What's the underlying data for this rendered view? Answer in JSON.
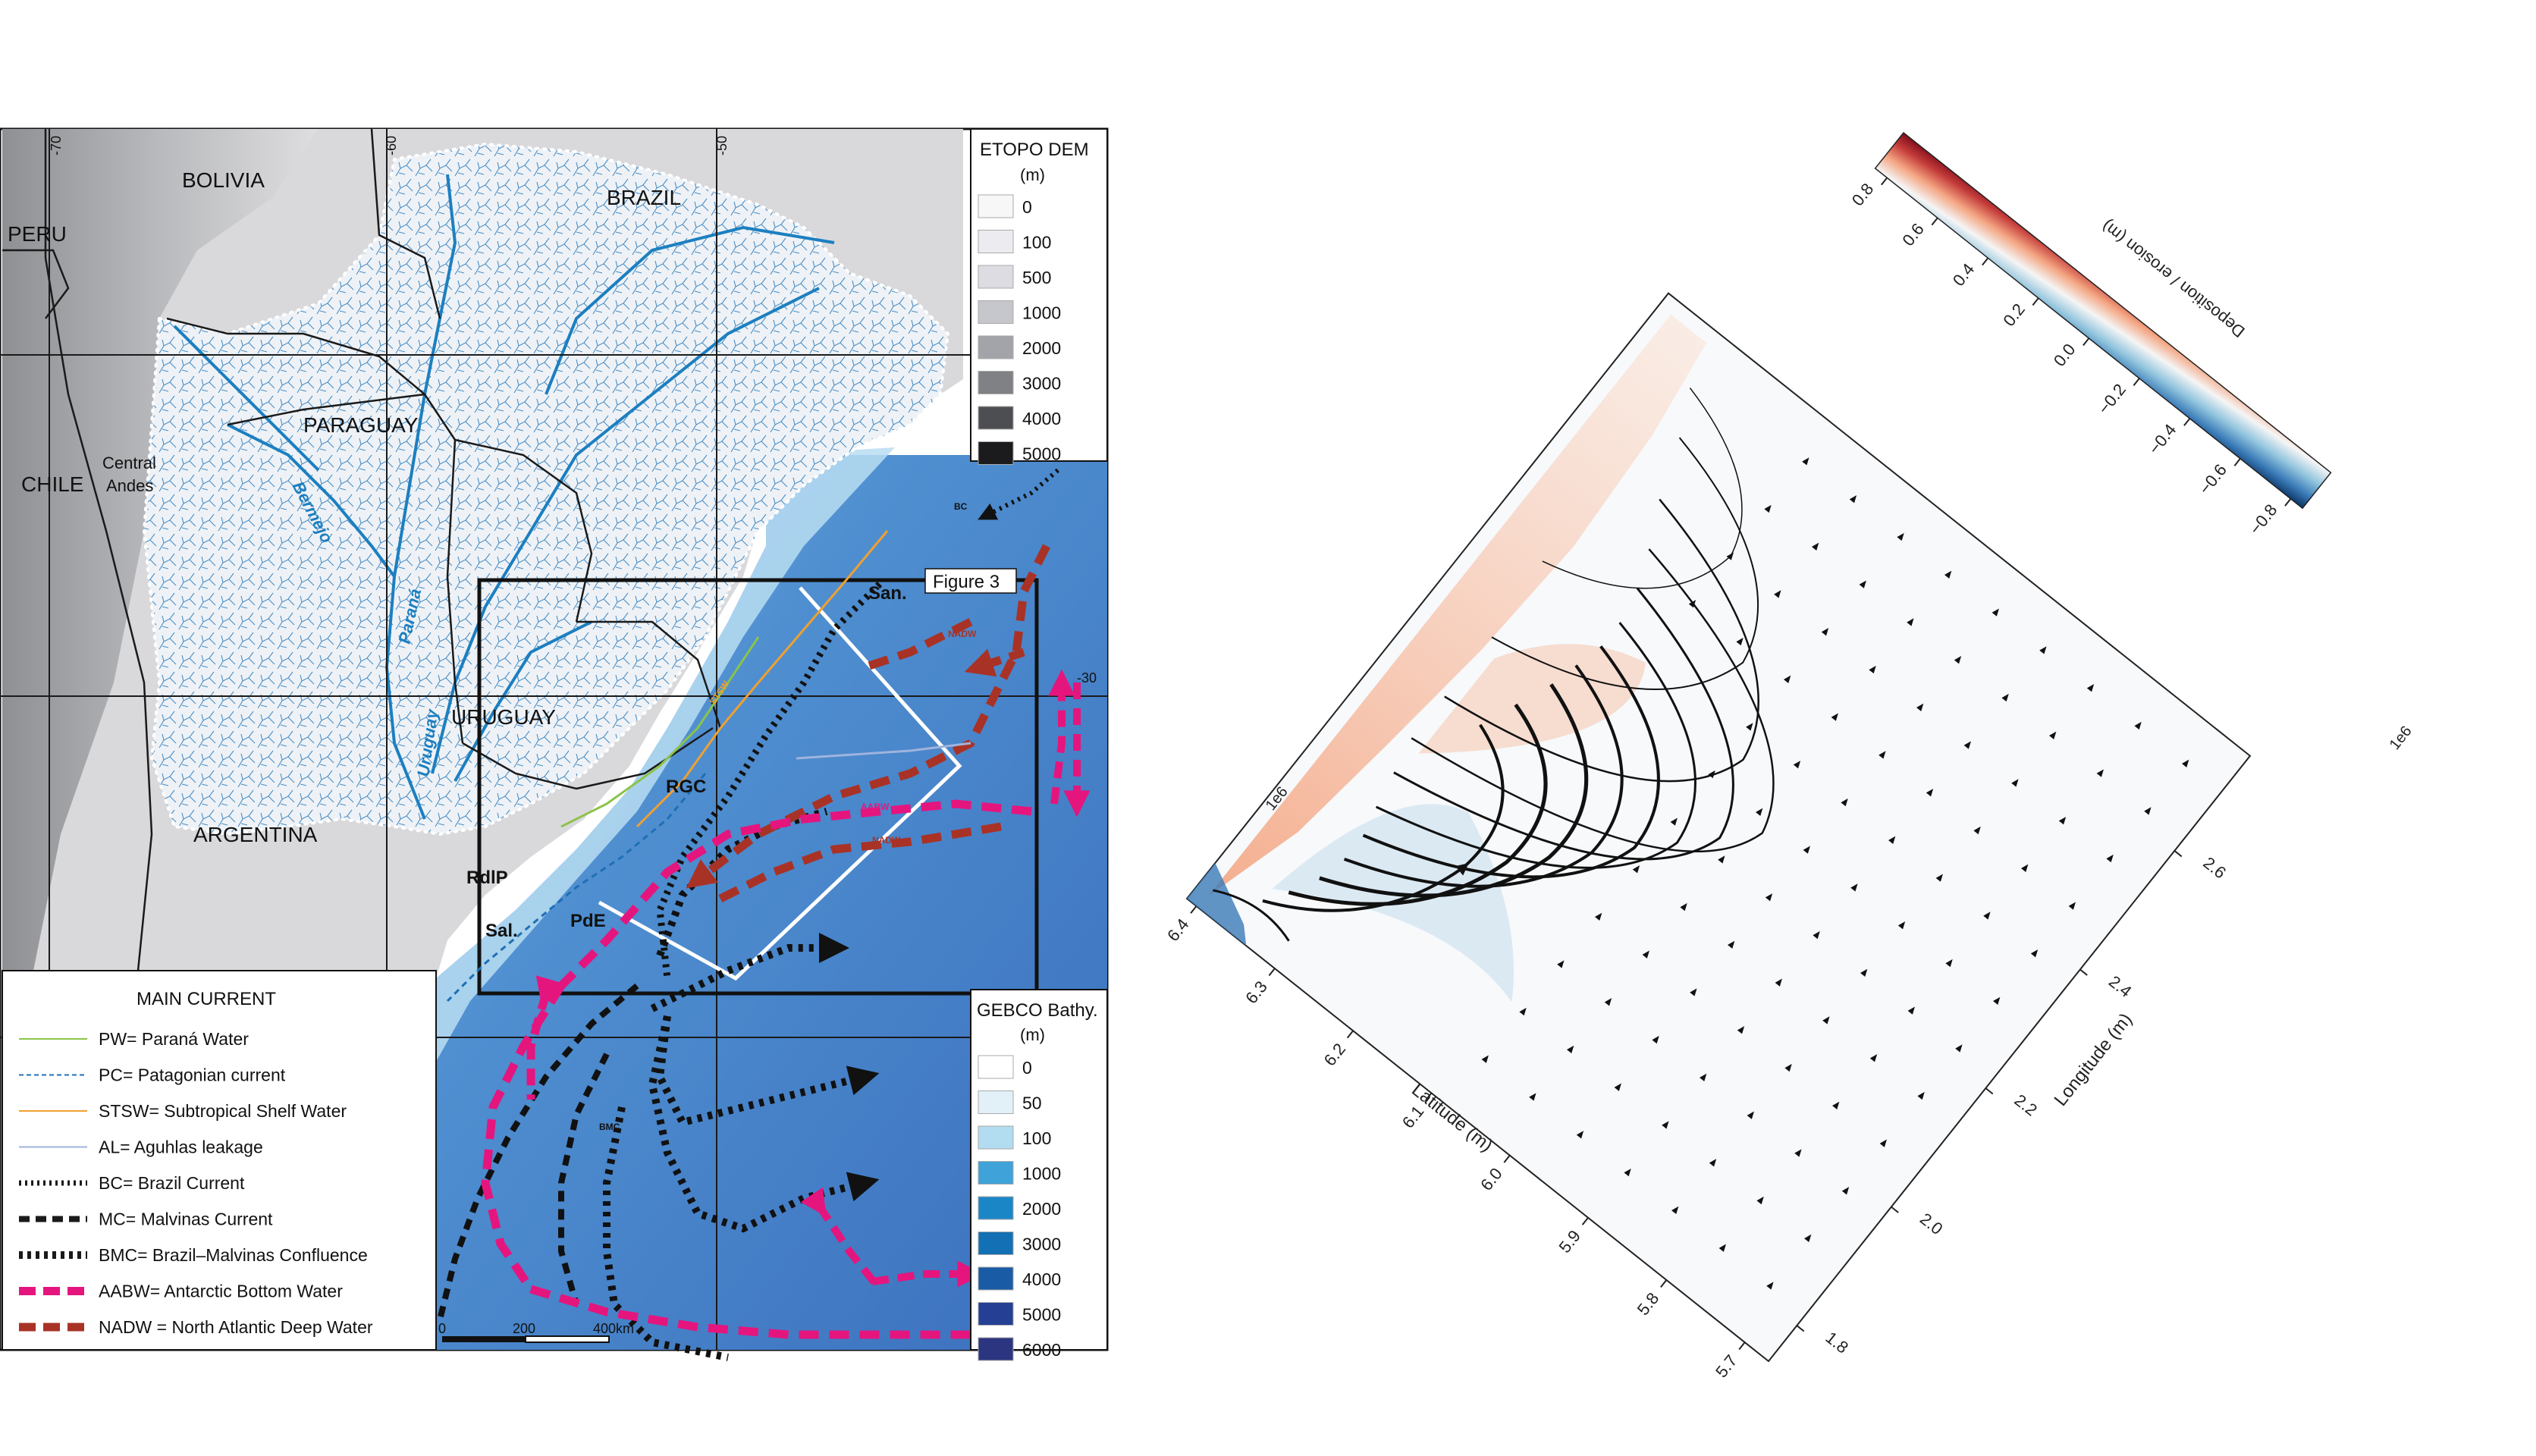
{
  "map": {
    "countries": [
      "BOLIVIA",
      "PERU",
      "BRAZIL",
      "PARAGUAY",
      "CHILE",
      "URUGUAY",
      "ARGENTINA"
    ],
    "region_labels": {
      "central_andes": [
        "Central",
        "Andes"
      ],
      "figure3": "Figure 3",
      "rdlp": "RdlP",
      "sal": "Sal.",
      "pde": "PdE",
      "rgc": "RGC",
      "san": "San."
    },
    "rivers": [
      "Bermejo",
      "Paraná",
      "Uruguay"
    ],
    "longitudes": [
      "-70",
      "-60",
      "-50"
    ],
    "latitude": "-30",
    "current_tags": [
      "BC",
      "NADW",
      "AABW",
      "NADW",
      "BMC",
      "STSW"
    ],
    "scalebar": [
      "0",
      "200",
      "400km"
    ],
    "etopo_legend": {
      "title": [
        "ETOPO DEM",
        "(m)"
      ],
      "items": [
        {
          "label": "0",
          "color": "#f7f7f7"
        },
        {
          "label": "100",
          "color": "#ececf0"
        },
        {
          "label": "500",
          "color": "#dcdce2"
        },
        {
          "label": "1000",
          "color": "#c6c7cd"
        },
        {
          "label": "2000",
          "color": "#a3a4aa"
        },
        {
          "label": "3000",
          "color": "#7f8185"
        },
        {
          "label": "4000",
          "color": "#4d4e52"
        },
        {
          "label": "5000",
          "color": "#1b1b1d"
        }
      ]
    },
    "gebco_legend": {
      "title": [
        "GEBCO Bathy.",
        "(m)"
      ],
      "items": [
        {
          "label": "0",
          "color": "#ffffff"
        },
        {
          "label": "50",
          "color": "#e2f1f8"
        },
        {
          "label": "100",
          "color": "#b2dcef"
        },
        {
          "label": "1000",
          "color": "#3fa2d8"
        },
        {
          "label": "2000",
          "color": "#1b86c6"
        },
        {
          "label": "3000",
          "color": "#1370b4"
        },
        {
          "label": "4000",
          "color": "#1a5ba6"
        },
        {
          "label": "5000",
          "color": "#243f94"
        },
        {
          "label": "6000",
          "color": "#2c3580"
        }
      ]
    },
    "current_legend": {
      "title": "MAIN CURRENT",
      "items": [
        {
          "label": "PW= Paraná Water",
          "style": "thin-solid",
          "color": "#8bc34a"
        },
        {
          "label": "PC= Patagonian current",
          "style": "thin-dashed",
          "color": "#1f6fb5"
        },
        {
          "label": "STSW= Subtropical Shelf Water",
          "style": "thin-solid",
          "color": "#f0a030"
        },
        {
          "label": "AL= Aguhlas leakage",
          "style": "thin-solid",
          "color": "#9fb3dd"
        },
        {
          "label": "BC= Brazil Current",
          "style": "dotted",
          "color": "#1a1a1a"
        },
        {
          "label": "MC= Malvinas Current",
          "style": "dashed",
          "color": "#1a1a1a"
        },
        {
          "label": "BMC= Brazil–Malvinas Confluence",
          "style": "thick-dotted",
          "color": "#1a1a1a"
        },
        {
          "label": "AABW= Antarctic Bottom Water",
          "style": "thick-dashed",
          "color": "#e5157e"
        },
        {
          "label": "NADW = North Atlantic Deep Water",
          "style": "thick-dashed",
          "color": "#a93226"
        }
      ]
    }
  },
  "plot": {
    "colorbar": {
      "label": "Deposition / erosion (m)",
      "ticks": [
        "0.8",
        "0.6",
        "0.4",
        "0.2",
        "0.0",
        "−0.2",
        "−0.4",
        "−0.6",
        "−0.8"
      ],
      "colors": {
        "positive": "#7f0a1c",
        "zero": "#f5f5f5",
        "negative": "#0b3566"
      }
    },
    "longitude_axis": {
      "label": "Longitude (m)",
      "ticks": [
        "1.8",
        "2.0",
        "2.2",
        "2.4",
        "2.6"
      ],
      "offset": "1e6"
    },
    "latitude_axis": {
      "label": "Latitude (m)",
      "ticks": [
        "5.7",
        "5.8",
        "5.9",
        "6.0",
        "6.1",
        "6.2",
        "6.3",
        "6.4"
      ],
      "offset": "1e6"
    }
  }
}
